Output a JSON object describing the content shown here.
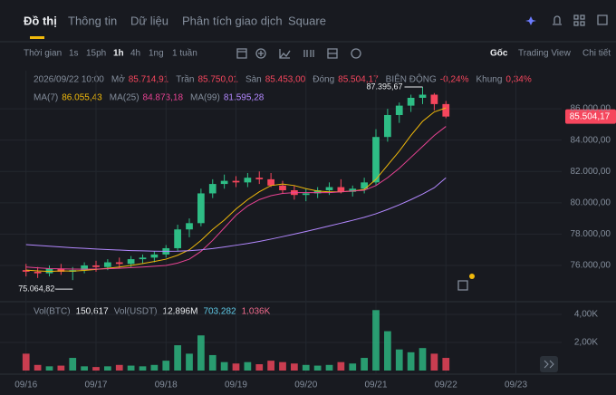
{
  "nav": {
    "tabs": [
      "Đồ thị",
      "Thông tin",
      "Dữ liệu",
      "Phân tích giao dịch",
      "Square"
    ]
  },
  "toolbar": {
    "intervals": [
      "Thời gian",
      "1s",
      "15ph",
      "1h",
      "4h",
      "1ng",
      "1 tuần"
    ],
    "views": [
      "Gốc",
      "Trading View",
      "Chi tiết"
    ]
  },
  "info": {
    "time": "2026/09/22 10:00",
    "fields": [
      {
        "label": "Mở",
        "value": "85.714,91"
      },
      {
        "label": "Trần",
        "value": "85.750,01"
      },
      {
        "label": "Sàn",
        "value": "85.453,00"
      },
      {
        "label": "Đóng",
        "value": "85.504,17"
      },
      {
        "label": "BIÊN ĐỘNG",
        "value": "-0,24%"
      },
      {
        "label": "Khung",
        "value": "0,34%"
      }
    ]
  },
  "volume_legend": [
    {
      "text": "Vol(BTC)",
      "color": "#848e9c"
    },
    {
      "text": "150,617",
      "color": "#eaecef"
    },
    {
      "text": "Vol(USDT)",
      "color": "#848e9c"
    },
    {
      "text": "12,896M",
      "color": "#eaecef"
    },
    {
      "text": "703,282",
      "color": "#5fc9e6"
    },
    {
      "text": "1,036K",
      "color": "#f06a8c"
    }
  ],
  "chart_data": {
    "type": "candlestick",
    "up_color": "#2ebd85",
    "down_color": "#f6465d",
    "x": [
      0,
      1,
      2,
      3,
      4,
      5,
      6,
      7,
      8,
      9,
      10,
      11,
      12,
      13,
      14,
      15,
      16,
      17,
      18,
      19,
      20,
      21,
      22,
      23,
      24,
      25,
      26,
      27,
      28,
      29,
      30,
      31,
      32,
      33,
      34,
      35,
      36
    ],
    "candles": [
      [
        75700,
        76100,
        75300,
        75600
      ],
      [
        75600,
        75900,
        75200,
        75500
      ],
      [
        75500,
        76000,
        75300,
        75800
      ],
      [
        75800,
        76100,
        75400,
        75600
      ],
      [
        75600,
        75900,
        75064.82,
        75700
      ],
      [
        75700,
        76200,
        75500,
        76000
      ],
      [
        76000,
        76300,
        75600,
        75900
      ],
      [
        75900,
        76400,
        75700,
        76200
      ],
      [
        76200,
        76500,
        75800,
        76100
      ],
      [
        76100,
        76600,
        75900,
        76400
      ],
      [
        76400,
        76700,
        76100,
        76500
      ],
      [
        76500,
        76900,
        76200,
        76700
      ],
      [
        76700,
        77300,
        76500,
        77100
      ],
      [
        77100,
        78600,
        76900,
        78300
      ],
      [
        78300,
        79000,
        77800,
        78700
      ],
      [
        78700,
        80900,
        78500,
        80600
      ],
      [
        80600,
        81500,
        80300,
        81200
      ],
      [
        81200,
        81800,
        80900,
        81400
      ],
      [
        81400,
        81700,
        81000,
        81300
      ],
      [
        81300,
        81900,
        81000,
        81600
      ],
      [
        81600,
        82000,
        81200,
        81500
      ],
      [
        81500,
        81900,
        81000,
        81100
      ],
      [
        81100,
        81400,
        80600,
        80800
      ],
      [
        80800,
        81100,
        80200,
        80500
      ],
      [
        80500,
        80900,
        80100,
        80600
      ],
      [
        80600,
        81000,
        80300,
        80800
      ],
      [
        80800,
        81300,
        80500,
        81000
      ],
      [
        81000,
        81500,
        80600,
        80700
      ],
      [
        80700,
        81100,
        80400,
        80900
      ],
      [
        80900,
        81600,
        80600,
        81300
      ],
      [
        81300,
        84700,
        81100,
        84200
      ],
      [
        84200,
        86000,
        83900,
        85600
      ],
      [
        85600,
        86400,
        85100,
        86200
      ],
      [
        86200,
        86900,
        85800,
        86700
      ],
      [
        86700,
        87395.67,
        86300,
        86900
      ],
      [
        86900,
        87000,
        85900,
        86300
      ],
      [
        86300,
        86500,
        85400,
        85504.17
      ]
    ],
    "high_label": "87.395,67",
    "low_label": "75.064,82",
    "last_label": "85.504,17",
    "series": [
      {
        "name": "MA(7)",
        "color": "#f0b90b",
        "value_label": "86.055,43",
        "values": [
          75700,
          75650,
          75620,
          75650,
          75640,
          75680,
          75750,
          75820,
          75900,
          76000,
          76120,
          76250,
          76400,
          76650,
          77000,
          77600,
          78300,
          78900,
          79600,
          80200,
          80700,
          81100,
          81200,
          81100,
          80900,
          80750,
          80700,
          80700,
          80750,
          80850,
          81500,
          82400,
          83300,
          84300,
          85200,
          85800,
          86055.43
        ]
      },
      {
        "name": "MA(25)",
        "color": "#e84393",
        "value_label": "84.873,18",
        "values": [
          75900,
          75850,
          75800,
          75780,
          75770,
          75760,
          75770,
          75790,
          75820,
          75860,
          75900,
          75950,
          76000,
          76150,
          76400,
          76900,
          77600,
          78400,
          79200,
          79800,
          80200,
          80450,
          80600,
          80650,
          80650,
          80650,
          80650,
          80700,
          80750,
          80800,
          81100,
          81600,
          82200,
          82900,
          83600,
          84300,
          84873.18
        ]
      },
      {
        "name": "MA(99)",
        "color": "#b388ff",
        "value_label": "81.595,28",
        "values": [
          77330,
          77280,
          77230,
          77180,
          77130,
          77090,
          77050,
          77010,
          76980,
          76950,
          76930,
          76910,
          76900,
          76910,
          76940,
          77000,
          77080,
          77180,
          77290,
          77400,
          77530,
          77680,
          77840,
          78000,
          78170,
          78340,
          78520,
          78700,
          78880,
          79070,
          79300,
          79570,
          79870,
          80200,
          80560,
          80960,
          81595.28
        ]
      }
    ],
    "volume": [
      1200,
      400,
      300,
      350,
      900,
      300,
      250,
      300,
      400,
      350,
      300,
      400,
      700,
      1800,
      1200,
      2500,
      1100,
      600,
      500,
      600,
      450,
      700,
      600,
      500,
      400,
      350,
      400,
      600,
      500,
      900,
      4300,
      2800,
      1500,
      1300,
      1600,
      1200,
      900
    ],
    "xlim": [
      -1.3,
      45.3
    ],
    "xticks": [
      {
        "value": 0,
        "label": "09/16"
      },
      {
        "value": 6,
        "label": "09/17"
      },
      {
        "value": 12,
        "label": "09/18"
      },
      {
        "value": 18,
        "label": "09/19"
      },
      {
        "value": 24,
        "label": "09/20"
      },
      {
        "value": 30,
        "label": "09/21"
      },
      {
        "value": 36,
        "label": "09/22"
      },
      {
        "value": 42,
        "label": "09/23"
      }
    ],
    "ylim": [
      73860,
      87450
    ],
    "yticks": [
      {
        "value": 76000,
        "label": "76.000,00"
      },
      {
        "value": 78000,
        "label": "78.000,00"
      },
      {
        "value": 80000,
        "label": "80.000,00"
      },
      {
        "value": 82000,
        "label": "82.000,00"
      },
      {
        "value": 84000,
        "label": "84.000,00"
      },
      {
        "value": 86000,
        "label": "86.000,00"
      }
    ],
    "vol_ylim": [
      0,
      4770
    ],
    "vol_yticks": [
      {
        "value": 2000,
        "label": "2,00K"
      },
      {
        "value": 4000,
        "label": "4,00K"
      }
    ]
  }
}
